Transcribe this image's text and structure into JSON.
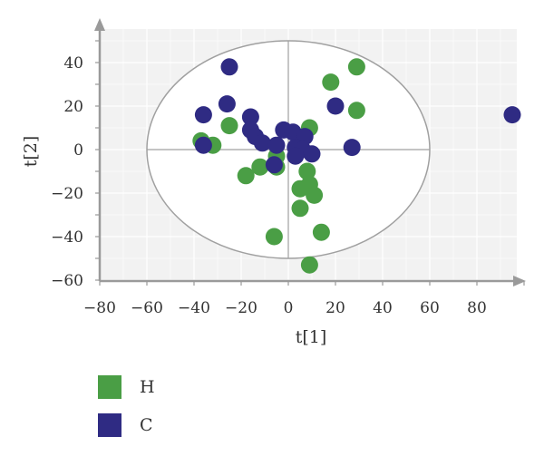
{
  "chart_data": {
    "type": "scatter",
    "title": "",
    "xlabel": "t[1]",
    "ylabel": "t[2]",
    "xlim": [
      -85,
      100
    ],
    "ylim": [
      -62,
      55
    ],
    "x_ticks": [
      -80,
      -60,
      -40,
      -20,
      0,
      20,
      40,
      60,
      80
    ],
    "y_ticks": [
      -60,
      -40,
      -20,
      0,
      20,
      40
    ],
    "x_tick_labels": [
      "−80",
      "−60",
      "−40",
      "−20",
      "0",
      "20",
      "40",
      "60",
      "80"
    ],
    "y_tick_labels": [
      "−60",
      "−40",
      "−20",
      "0",
      "20",
      "40"
    ],
    "grid": true,
    "confidence_ellipse": {
      "cx": 0,
      "cy": 0,
      "rx": 60,
      "ry": 50
    },
    "legend_position": "bottom-left",
    "series": [
      {
        "name": "H",
        "color": "#4a9e45",
        "points": [
          [
            29,
            38
          ],
          [
            18,
            31
          ],
          [
            29,
            18
          ],
          [
            9,
            10
          ],
          [
            -25,
            11
          ],
          [
            -37,
            4
          ],
          [
            -32,
            2
          ],
          [
            -18,
            -12
          ],
          [
            -12,
            -8
          ],
          [
            -5,
            -3
          ],
          [
            -5,
            -8
          ],
          [
            8,
            -10
          ],
          [
            9,
            -16
          ],
          [
            5,
            -18
          ],
          [
            11,
            -21
          ],
          [
            5,
            -27
          ],
          [
            -6,
            -40
          ],
          [
            14,
            -38
          ],
          [
            9,
            -53
          ]
        ]
      },
      {
        "name": "C",
        "color": "#2f2b83",
        "points": [
          [
            -25,
            38
          ],
          [
            -26,
            21
          ],
          [
            -36,
            16
          ],
          [
            -16,
            15
          ],
          [
            20,
            20
          ],
          [
            95,
            16
          ],
          [
            -16,
            9
          ],
          [
            -14,
            6
          ],
          [
            -2,
            9
          ],
          [
            2,
            8
          ],
          [
            7,
            6
          ],
          [
            -11,
            3
          ],
          [
            -5,
            2
          ],
          [
            3,
            1
          ],
          [
            6,
            0
          ],
          [
            10,
            -2
          ],
          [
            3,
            -3
          ],
          [
            -6,
            -7
          ],
          [
            -36,
            2
          ],
          [
            27,
            1
          ]
        ]
      }
    ]
  }
}
